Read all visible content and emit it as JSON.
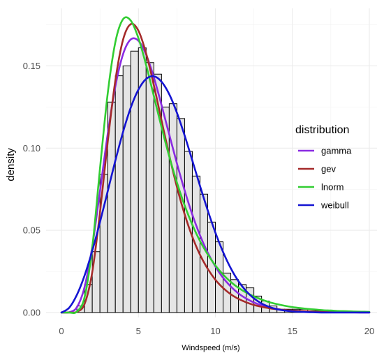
{
  "chart_data": {
    "type": "bar",
    "subtype": "histogram with fitted density curves",
    "title": "",
    "xlabel": "Windspeed (m/s)",
    "ylabel": "density",
    "xlim": [
      -1,
      20.5
    ],
    "ylim": [
      -0.003,
      0.185
    ],
    "x_ticks": [
      0,
      5,
      10,
      15,
      20
    ],
    "x_tick_labels": [
      "0",
      "5",
      "10",
      "15",
      "20"
    ],
    "y_ticks": [
      0.0,
      0.05,
      0.1,
      0.15
    ],
    "y_tick_labels": [
      "0.00",
      "0.05",
      "0.10",
      "0.15"
    ],
    "grid": true,
    "legend": {
      "title": "distribution",
      "position": "right"
    },
    "histogram": {
      "bin_width": 0.5,
      "fill": "#e5e5e5",
      "stroke": "#000000",
      "bins": [
        {
          "x0": 1.0,
          "x1": 1.5,
          "density": 0.004
        },
        {
          "x0": 1.5,
          "x1": 2.0,
          "density": 0.017
        },
        {
          "x0": 2.0,
          "x1": 2.5,
          "density": 0.037
        },
        {
          "x0": 2.5,
          "x1": 3.0,
          "density": 0.084
        },
        {
          "x0": 3.0,
          "x1": 3.5,
          "density": 0.128
        },
        {
          "x0": 3.5,
          "x1": 4.0,
          "density": 0.144
        },
        {
          "x0": 4.0,
          "x1": 4.5,
          "density": 0.15
        },
        {
          "x0": 4.5,
          "x1": 5.0,
          "density": 0.159
        },
        {
          "x0": 5.0,
          "x1": 5.5,
          "density": 0.161
        },
        {
          "x0": 5.5,
          "x1": 6.0,
          "density": 0.152
        },
        {
          "x0": 6.0,
          "x1": 6.5,
          "density": 0.145
        },
        {
          "x0": 6.5,
          "x1": 7.0,
          "density": 0.125
        },
        {
          "x0": 7.0,
          "x1": 7.5,
          "density": 0.127
        },
        {
          "x0": 7.5,
          "x1": 8.0,
          "density": 0.118
        },
        {
          "x0": 8.0,
          "x1": 8.5,
          "density": 0.098
        },
        {
          "x0": 8.5,
          "x1": 9.0,
          "density": 0.083
        },
        {
          "x0": 9.0,
          "x1": 9.5,
          "density": 0.072
        },
        {
          "x0": 9.5,
          "x1": 10.0,
          "density": 0.055
        },
        {
          "x0": 10.0,
          "x1": 10.5,
          "density": 0.043
        },
        {
          "x0": 10.5,
          "x1": 11.0,
          "density": 0.024
        },
        {
          "x0": 11.0,
          "x1": 11.5,
          "density": 0.02
        },
        {
          "x0": 11.5,
          "x1": 12.0,
          "density": 0.017
        },
        {
          "x0": 12.0,
          "x1": 12.5,
          "density": 0.015
        },
        {
          "x0": 12.5,
          "x1": 13.0,
          "density": 0.01
        },
        {
          "x0": 13.0,
          "x1": 13.5,
          "density": 0.007
        },
        {
          "x0": 13.5,
          "x1": 14.0,
          "density": 0.004
        },
        {
          "x0": 14.0,
          "x1": 14.5,
          "density": 0.002
        },
        {
          "x0": 14.5,
          "x1": 15.0,
          "density": 0.002
        },
        {
          "x0": 15.0,
          "x1": 15.5,
          "density": 0.002
        },
        {
          "x0": 15.5,
          "x1": 16.0,
          "density": 0.002
        },
        {
          "x0": 16.0,
          "x1": 16.5,
          "density": 0.001
        },
        {
          "x0": 16.5,
          "x1": 17.0,
          "density": 0.001
        },
        {
          "x0": 17.0,
          "x1": 17.5,
          "density": 0.001
        }
      ]
    },
    "series": [
      {
        "name": "gamma",
        "color": "#8a2be2",
        "x": [
          0,
          0.5,
          1,
          1.5,
          2,
          2.5,
          3,
          3.5,
          4,
          4.5,
          5,
          5.5,
          6,
          6.5,
          7,
          7.5,
          8,
          8.5,
          9,
          9.5,
          10,
          10.5,
          11,
          11.5,
          12,
          12.5,
          13,
          13.5,
          14,
          14.5,
          15,
          15.5,
          16,
          16.5,
          17,
          17.5,
          18,
          18.5,
          19,
          19.5,
          20
        ],
        "y": [
          0.0,
          0.0002,
          0.0032,
          0.0155,
          0.0401,
          0.0737,
          0.1083,
          0.1375,
          0.1571,
          0.1661,
          0.1653,
          0.1569,
          0.1431,
          0.1262,
          0.1083,
          0.0907,
          0.0743,
          0.0596,
          0.047,
          0.0365,
          0.028,
          0.0211,
          0.0158,
          0.0116,
          0.0085,
          0.0061,
          0.0044,
          0.0031,
          0.0022,
          0.0015,
          0.0011,
          0.0007,
          0.0005,
          0.0003,
          0.0002,
          0.0002,
          0.0001,
          0.0001,
          0.0001,
          0.0,
          0.0
        ]
      },
      {
        "name": "gev",
        "color": "#a52a2a",
        "x": [
          0,
          0.5,
          1,
          1.5,
          2,
          2.5,
          3,
          3.5,
          4,
          4.5,
          5,
          5.5,
          6,
          6.5,
          7,
          7.5,
          8,
          8.5,
          9,
          9.5,
          10,
          10.5,
          11,
          11.5,
          12,
          12.5,
          13,
          13.5,
          14,
          14.5,
          15,
          15.5,
          16,
          16.5,
          17,
          17.5,
          18,
          18.5,
          19,
          19.5,
          20
        ],
        "y": [
          0.0,
          0.0,
          0.0004,
          0.0052,
          0.0246,
          0.0607,
          0.1035,
          0.1411,
          0.1659,
          0.1754,
          0.1714,
          0.1576,
          0.1383,
          0.1168,
          0.0957,
          0.0764,
          0.0598,
          0.0461,
          0.0351,
          0.0266,
          0.0199,
          0.0149,
          0.0111,
          0.0083,
          0.0062,
          0.0046,
          0.0035,
          0.0026,
          0.002,
          0.0015,
          0.0012,
          0.0009,
          0.0007,
          0.0005,
          0.0004,
          0.0003,
          0.0003,
          0.0002,
          0.0002,
          0.0001,
          0.0001
        ]
      },
      {
        "name": "lnorm",
        "color": "#32cd32",
        "x": [
          0,
          0.5,
          1,
          1.5,
          2,
          2.5,
          3,
          3.5,
          4,
          4.5,
          5,
          5.5,
          6,
          6.5,
          7,
          7.5,
          8,
          8.5,
          9,
          9.5,
          10,
          10.5,
          11,
          11.5,
          12,
          12.5,
          13,
          13.5,
          14,
          14.5,
          15,
          15.5,
          16,
          16.5,
          17,
          17.5,
          18,
          18.5,
          19,
          19.5,
          20
        ],
        "y": [
          0.0,
          0.0,
          0.0005,
          0.0093,
          0.0395,
          0.0873,
          0.1329,
          0.1644,
          0.1784,
          0.1776,
          0.1669,
          0.1505,
          0.1317,
          0.1127,
          0.095,
          0.0791,
          0.0652,
          0.0534,
          0.0435,
          0.0354,
          0.0286,
          0.0231,
          0.0186,
          0.015,
          0.0121,
          0.0098,
          0.0079,
          0.0063,
          0.0051,
          0.0041,
          0.0033,
          0.0027,
          0.0022,
          0.0018,
          0.0014,
          0.0012,
          0.0009,
          0.0008,
          0.0006,
          0.0005,
          0.0004
        ]
      },
      {
        "name": "weibull",
        "color": "#1414d2",
        "x": [
          0,
          0.5,
          1,
          1.5,
          2,
          2.5,
          3,
          3.5,
          4,
          4.5,
          5,
          5.5,
          6,
          6.5,
          7,
          7.5,
          8,
          8.5,
          9,
          9.5,
          10,
          10.5,
          11,
          11.5,
          12,
          12.5,
          13,
          13.5,
          14,
          14.5,
          15,
          15.5,
          16,
          16.5,
          17,
          17.5,
          18,
          18.5,
          19,
          19.5,
          20
        ],
        "y": [
          0.0,
          0.0029,
          0.0107,
          0.0225,
          0.0375,
          0.0549,
          0.0736,
          0.0924,
          0.1098,
          0.1246,
          0.1356,
          0.1421,
          0.1437,
          0.1404,
          0.1328,
          0.1215,
          0.1077,
          0.0925,
          0.077,
          0.0622,
          0.0486,
          0.0368,
          0.0269,
          0.019,
          0.013,
          0.0086,
          0.0055,
          0.0034,
          0.002,
          0.0012,
          0.0007,
          0.0004,
          0.0002,
          0.0001,
          0.0,
          0.0,
          0.0,
          0.0,
          0.0,
          0.0,
          0.0
        ]
      }
    ]
  }
}
